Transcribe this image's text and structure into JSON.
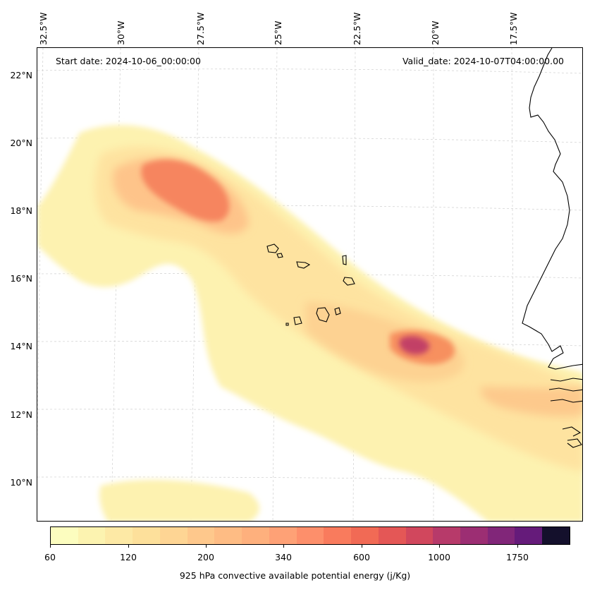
{
  "map": {
    "start_date": "Start date: 2024-10-06_00:00:00",
    "valid_date": "Valid_date: 2024-10-07T04:00:00.00",
    "lat_labels": [
      "22°N",
      "20°N",
      "18°N",
      "16°N",
      "14°N",
      "12°N",
      "10°N"
    ],
    "lon_labels": [
      "32.5°W",
      "30°W",
      "27.5°W",
      "25°W",
      "22.5°W",
      "20°W",
      "17.5°W"
    ],
    "variable": "925 hPa convective available potential energy",
    "units": "j/Kg"
  },
  "colorbar": {
    "label": "925 hPa convective available potential energy (j/Kg)",
    "tick_labels": [
      "60",
      "120",
      "200",
      "340",
      "600",
      "1000",
      "1750"
    ],
    "colors": [
      "#fcfdbf",
      "#fcf3b0",
      "#fde9a5",
      "#fde09b",
      "#fed594",
      "#fec88c",
      "#febc84",
      "#feb07d",
      "#fea176",
      "#fd8f6b",
      "#f97b5d",
      "#f16a55",
      "#e45756",
      "#d1475d",
      "#b73a6a",
      "#9c2e73",
      "#812679",
      "#651b7a",
      "#14102c"
    ]
  }
}
